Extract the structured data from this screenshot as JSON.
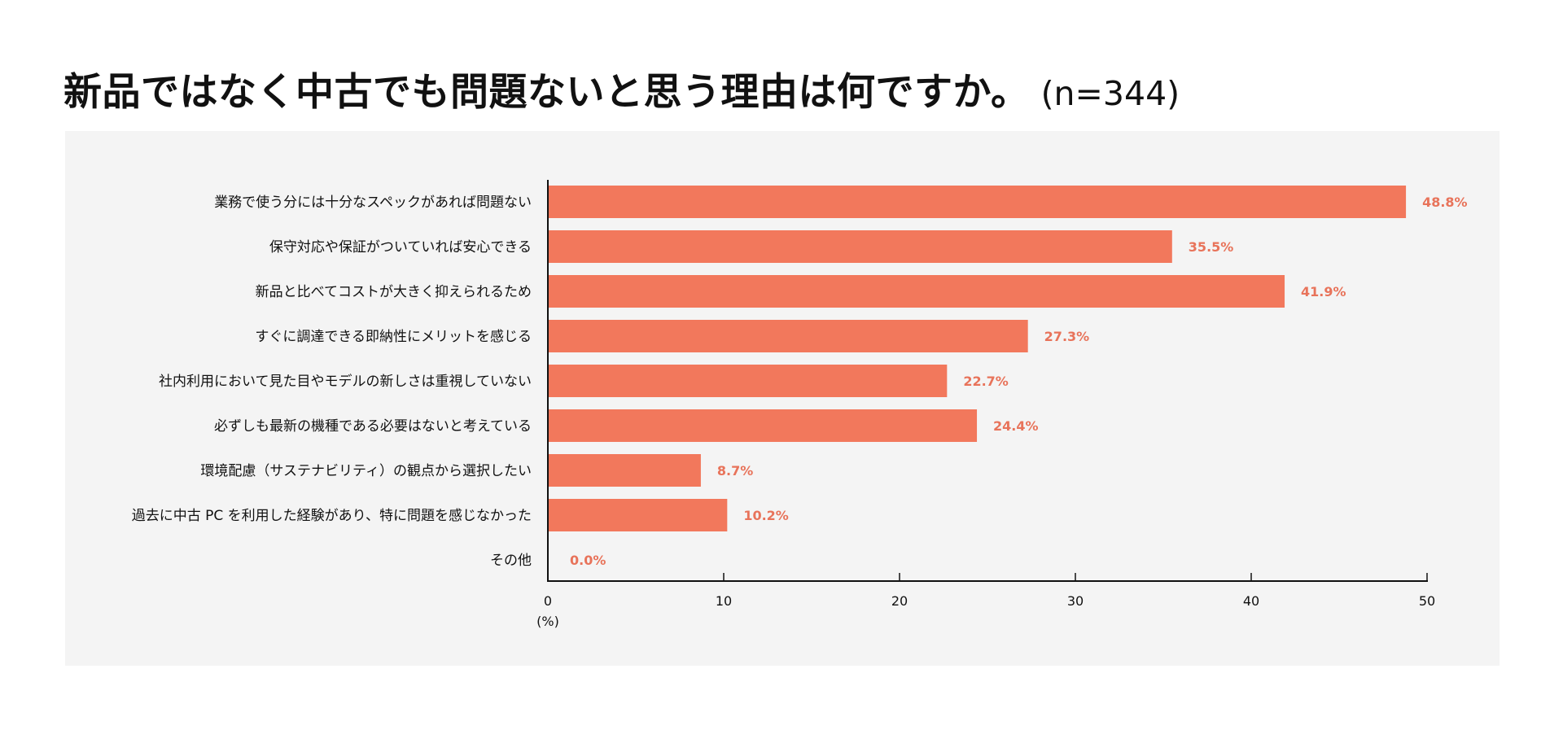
{
  "title": {
    "main": "新品ではなく中古でも問題ないと思う理由は何ですか。",
    "n": "(n=344)"
  },
  "colors": {
    "bar": "#f2785c",
    "value_label": "#e8735a",
    "panel_bg": "#f4f4f4",
    "axis": "#111111"
  },
  "chart_data": {
    "type": "bar",
    "orientation": "horizontal",
    "title": "新品ではなく中古でも問題ないと思う理由は何ですか。(n=344)",
    "categories": [
      "業務で使う分には十分なスペックがあれば問題ない",
      "保守対応や保証がついていれば安心できる",
      "新品と比べてコストが大きく抑えられるため",
      "すぐに調達できる即納性にメリットを感じる",
      "社内利用において見た目やモデルの新しさは重視していない",
      "必ずしも最新の機種である必要はないと考えている",
      "環境配慮（サステナビリティ）の観点から選択したい",
      "過去に中古 PC を利用した経験があり、特に問題を感じなかった",
      "その他"
    ],
    "values": [
      48.8,
      35.5,
      41.9,
      27.3,
      22.7,
      24.4,
      8.7,
      10.2,
      0.0
    ],
    "value_labels": [
      "48.8%",
      "35.5%",
      "41.9%",
      "27.3%",
      "22.7%",
      "24.4%",
      "8.7%",
      "10.2%",
      "0.0%"
    ],
    "xlim": [
      0,
      50
    ],
    "xticks": [
      "0",
      "10",
      "20",
      "30",
      "40",
      "50"
    ],
    "xlabel": "(%)",
    "grid": false,
    "legend": "none"
  }
}
